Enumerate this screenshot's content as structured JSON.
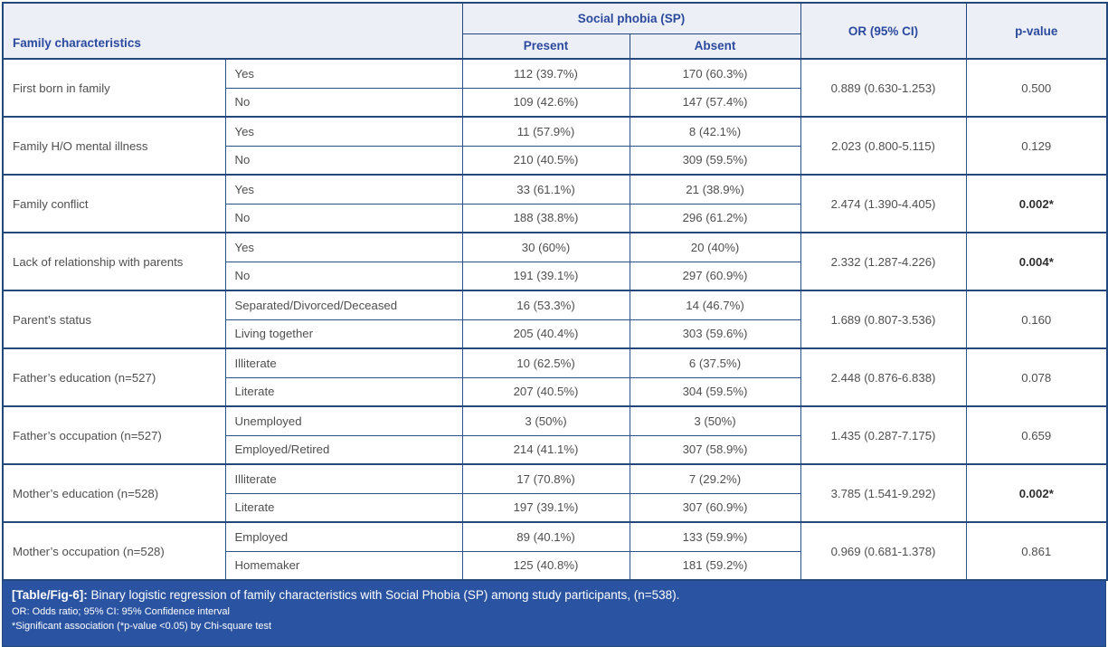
{
  "table": {
    "header": {
      "family_characteristics": "Family characteristics",
      "social_phobia": "Social phobia (SP)",
      "present": "Present",
      "absent": "Absent",
      "or_ci": "OR (95% CI)",
      "p_value": "p-value"
    },
    "groups": [
      {
        "characteristic": "First born in family",
        "rows": [
          {
            "label": "Yes",
            "present": "112 (39.7%)",
            "absent": "170 (60.3%)"
          },
          {
            "label": "No",
            "present": "109 (42.6%)",
            "absent": "147 (57.4%)"
          }
        ],
        "or_ci": "0.889 (0.630-1.253)",
        "p_value": "0.500",
        "significant": false
      },
      {
        "characteristic": "Family H/O mental illness",
        "rows": [
          {
            "label": "Yes",
            "present": "11 (57.9%)",
            "absent": "8 (42.1%)"
          },
          {
            "label": "No",
            "present": "210 (40.5%)",
            "absent": "309 (59.5%)"
          }
        ],
        "or_ci": "2.023 (0.800-5.115)",
        "p_value": "0.129",
        "significant": false
      },
      {
        "characteristic": "Family conflict",
        "rows": [
          {
            "label": "Yes",
            "present": "33 (61.1%)",
            "absent": "21 (38.9%)"
          },
          {
            "label": "No",
            "present": "188 (38.8%)",
            "absent": "296 (61.2%)"
          }
        ],
        "or_ci": "2.474 (1.390-4.405)",
        "p_value": "0.002*",
        "significant": true
      },
      {
        "characteristic": "Lack of relationship with parents",
        "rows": [
          {
            "label": "Yes",
            "present": "30 (60%)",
            "absent": "20 (40%)"
          },
          {
            "label": "No",
            "present": "191 (39.1%)",
            "absent": "297 (60.9%)"
          }
        ],
        "or_ci": "2.332 (1.287-4.226)",
        "p_value": "0.004*",
        "significant": true
      },
      {
        "characteristic": "Parent’s status",
        "rows": [
          {
            "label": "Separated/Divorced/Deceased",
            "present": "16 (53.3%)",
            "absent": "14 (46.7%)"
          },
          {
            "label": "Living together",
            "present": "205 (40.4%)",
            "absent": "303 (59.6%)"
          }
        ],
        "or_ci": "1.689 (0.807-3.536)",
        "p_value": "0.160",
        "significant": false
      },
      {
        "characteristic": "Father’s education (n=527)",
        "rows": [
          {
            "label": "Illiterate",
            "present": "10 (62.5%)",
            "absent": "6 (37.5%)"
          },
          {
            "label": "Literate",
            "present": "207 (40.5%)",
            "absent": "304 (59.5%)"
          }
        ],
        "or_ci": "2.448 (0.876-6.838)",
        "p_value": "0.078",
        "significant": false
      },
      {
        "characteristic": "Father’s occupation (n=527)",
        "rows": [
          {
            "label": "Unemployed",
            "present": "3 (50%)",
            "absent": "3 (50%)"
          },
          {
            "label": "Employed/Retired",
            "present": "214 (41.1%)",
            "absent": "307 (58.9%)"
          }
        ],
        "or_ci": "1.435 (0.287-7.175)",
        "p_value": "0.659",
        "significant": false
      },
      {
        "characteristic": "Mother’s education (n=528)",
        "rows": [
          {
            "label": "Illiterate",
            "present": "17 (70.8%)",
            "absent": "7 (29.2%)"
          },
          {
            "label": "Literate",
            "present": "197 (39.1%)",
            "absent": "307 (60.9%)"
          }
        ],
        "or_ci": "3.785 (1.541-9.292)",
        "p_value": "0.002*",
        "significant": true
      },
      {
        "characteristic": "Mother’s occupation (n=528)",
        "rows": [
          {
            "label": "Employed",
            "present": "89 (40.1%)",
            "absent": "133 (59.9%)"
          },
          {
            "label": "Homemaker",
            "present": "125 (40.8%)",
            "absent": "181 (59.2%)"
          }
        ],
        "or_ci": "0.969 (0.681-1.378)",
        "p_value": "0.861",
        "significant": false
      }
    ]
  },
  "footer": {
    "caption_label": "[Table/Fig-6]:",
    "caption_text": "Binary logistic regression of family characteristics with Social Phobia (SP) among study participants, (n=538).",
    "note1": "OR: Odds ratio; 95% CI: 95% Confidence interval",
    "note2": "*Significant association (*p-value <0.05) by Chi-square test"
  },
  "colors": {
    "border": "#24477c",
    "header_bg": "#edeff7",
    "header_text": "#2b4a9e",
    "body_text": "#4f4f4f",
    "footer_bg": "#2a53a2",
    "footer_text": "#ffffff"
  }
}
